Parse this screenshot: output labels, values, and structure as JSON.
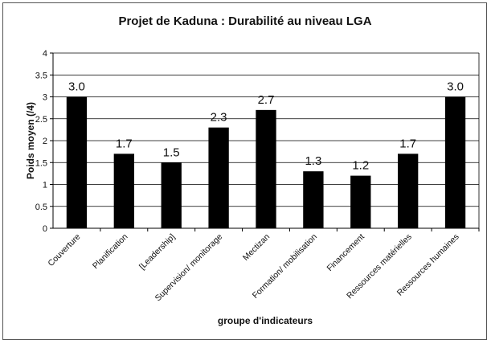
{
  "chart_data": {
    "type": "bar",
    "title": "Projet de Kaduna : Durabilité au niveau LGA",
    "xlabel": "groupe d'indicateurs",
    "ylabel": "Poids moyen (/4)",
    "categories": [
      "Couverture",
      "Planification",
      "[Leadership]",
      "Supervision/ monitorage",
      "Mectizan",
      "Formation/ mobilisation",
      "Financement",
      "Ressources matérielles",
      "Ressources humaines"
    ],
    "values": [
      3.0,
      1.7,
      1.5,
      2.3,
      2.7,
      1.3,
      1.2,
      1.7,
      3.0
    ],
    "data_labels": [
      "3.0",
      "1.7",
      "1.5",
      "2.3",
      "2.7",
      "1.3",
      "1.2",
      "1.7",
      "3.0"
    ],
    "ylim": [
      0,
      4
    ],
    "yticks": [
      "0",
      "0.5",
      "1",
      "1.5",
      "2",
      "2.5",
      "3",
      "3.5",
      "4"
    ],
    "grid": true,
    "legend": "none",
    "bar_color": "#000000",
    "grid_color": "#000000"
  }
}
